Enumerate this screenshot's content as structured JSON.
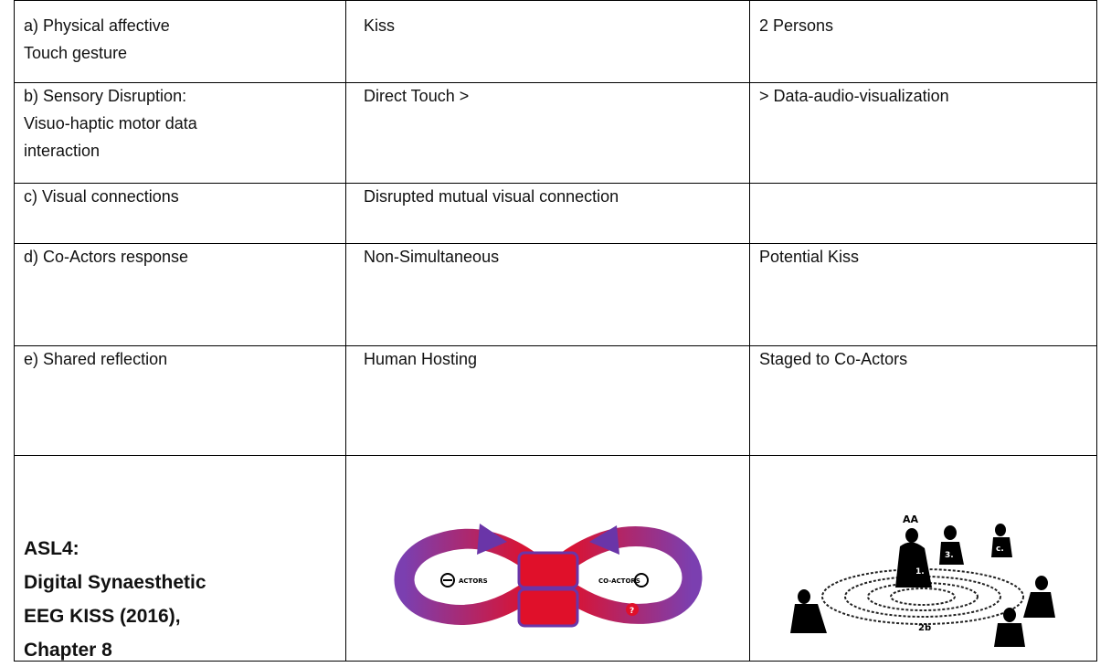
{
  "table": {
    "rows": [
      [
        [
          "a) Physical affective",
          "Touch gesture"
        ],
        [
          "Kiss"
        ],
        [
          "2 Persons"
        ]
      ],
      [
        [
          "b) Sensory Disruption:",
          "Visuo-haptic motor data",
          "interaction"
        ],
        [
          "Direct Touch >"
        ],
        [
          "> Data-audio-visualization"
        ]
      ],
      [
        [
          "c) Visual connections"
        ],
        [
          "Disrupted mutual visual connection"
        ],
        []
      ],
      [
        [
          "d) Co-Actors response"
        ],
        [
          "Non-Simultaneous"
        ],
        [
          "Potential Kiss"
        ]
      ],
      [
        [
          "e) Shared reflection"
        ],
        [
          "Human Hosting"
        ],
        [
          "Staged to Co-Actors"
        ]
      ],
      [
        [
          "ASL4:",
          "Digital Synaesthetic",
          "EEG KISS (2016),",
          "Chapter 8"
        ]
      ]
    ]
  },
  "figures": {
    "loop": {
      "left": "ACTORS",
      "right": "CO-ACTORS",
      "mark": "?"
    },
    "people": {
      "top": "AA",
      "center": "1.",
      "seated": "3.",
      "side": "c.",
      "floor": "2b"
    }
  }
}
